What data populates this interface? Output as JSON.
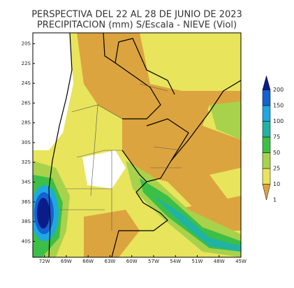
{
  "title": [
    "PERSPECTIVA DEL 22 AL 28 DE JUNIO DE 2023",
    "PRECIPITACION (mm) S/Escala - NIEVE (Viol)"
  ],
  "map": {
    "lonlim": [
      -73.6,
      -45
    ],
    "latlim": [
      -41.6,
      -18.9
    ],
    "lon_ticks": [
      {
        "value": -72,
        "label": "72W"
      },
      {
        "value": -69,
        "label": "69W"
      },
      {
        "value": -66,
        "label": "66W"
      },
      {
        "value": -63,
        "label": "63W"
      },
      {
        "value": -60,
        "label": "60W"
      },
      {
        "value": -57,
        "label": "57W"
      },
      {
        "value": -54,
        "label": "54W"
      },
      {
        "value": -51,
        "label": "51W"
      },
      {
        "value": -48,
        "label": "48W"
      },
      {
        "value": -45,
        "label": "45W"
      }
    ],
    "lat_ticks": [
      {
        "value": -20,
        "label": "20S"
      },
      {
        "value": -22,
        "label": "22S"
      },
      {
        "value": -24,
        "label": "24S"
      },
      {
        "value": -26,
        "label": "26S"
      },
      {
        "value": -28,
        "label": "28S"
      },
      {
        "value": -30,
        "label": "30S"
      },
      {
        "value": -32,
        "label": "32S"
      },
      {
        "value": -34,
        "label": "34S"
      },
      {
        "value": -36,
        "label": "36S"
      },
      {
        "value": -38,
        "label": "38S"
      },
      {
        "value": -40,
        "label": "40S"
      }
    ]
  },
  "colorbar": {
    "ticks": [
      1,
      10,
      25,
      50,
      75,
      100,
      150,
      200
    ],
    "colors": [
      "#dca43e",
      "#e8e45c",
      "#a8d24c",
      "#3cbf46",
      "#20b3a3",
      "#1ea8e2",
      "#1462d0",
      "#0b1c8a"
    ]
  }
}
